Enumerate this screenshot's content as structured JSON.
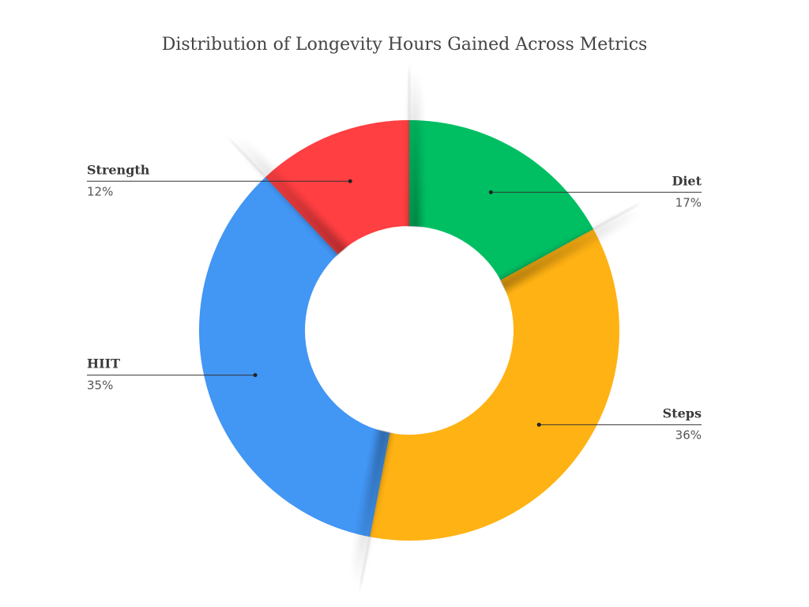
{
  "chart_data": {
    "type": "pie",
    "variant": "donut",
    "title": "Distribution of Longevity Hours Gained Across Metrics",
    "start": "top, clockwise",
    "slices": [
      {
        "name": "Diet",
        "value": 17,
        "label": "17%",
        "color": "#00BF63",
        "label_side": "right"
      },
      {
        "name": "Steps",
        "value": 36,
        "label": "36%",
        "color": "#FFB213",
        "label_side": "right"
      },
      {
        "name": "HIIT",
        "value": 35,
        "label": "35%",
        "color": "#4296F4",
        "label_side": "left"
      },
      {
        "name": "Strength",
        "value": 12,
        "label": "12%",
        "color": "#FF3F42",
        "label_side": "left"
      }
    ]
  }
}
